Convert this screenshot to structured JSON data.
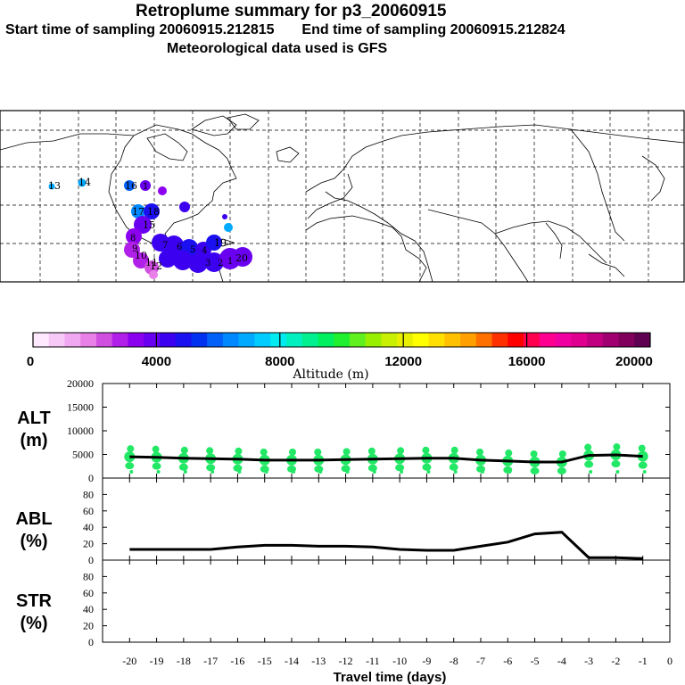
{
  "header": {
    "title": "Retroplume summary for p3_20060915",
    "start_label": "Start time of sampling",
    "start_value": "20060915.212815",
    "end_label": "End time of sampling",
    "end_value": "20060915.212824",
    "met": "Meteorological data used is GFS"
  },
  "colorbar": {
    "label": "Altitude (m)",
    "ticks": [
      "0",
      "4000",
      "8000",
      "12000",
      "16000",
      "20000"
    ],
    "colors": [
      "#ffe9ff",
      "#f6c9f6",
      "#f0a8f0",
      "#e880e8",
      "#d050e0",
      "#b020e8",
      "#8c00f0",
      "#6a00f0",
      "#3c00f0",
      "#1a10f0",
      "#0030f0",
      "#0060f8",
      "#0088ff",
      "#00aaff",
      "#00ccff",
      "#00eaf0",
      "#00f0c0",
      "#00f090",
      "#00f060",
      "#20f030",
      "#60f020",
      "#98f000",
      "#c8f000",
      "#e8f000",
      "#ffff00",
      "#ffe000",
      "#ffc000",
      "#ffa000",
      "#ff7000",
      "#ff3000",
      "#ff0000",
      "#ff0050",
      "#ff0090",
      "#f000a0",
      "#e00090",
      "#c00080",
      "#a00070",
      "#80005c",
      "#600050"
    ]
  },
  "map": {
    "labels": [
      "13",
      "14",
      "16",
      "1",
      "17",
      "18",
      "15",
      "12",
      "11",
      "10",
      "9",
      "8",
      "7",
      "6",
      "5",
      "4",
      "3",
      "2",
      "1",
      "20",
      "19"
    ]
  },
  "chart_data": [
    {
      "type": "line",
      "panel": "ALT",
      "ylabel": "ALT\n(m)",
      "ylabel_top": "ALT",
      "ylabel_unit": "(m)",
      "ylim": [
        0,
        20000
      ],
      "yticks": [
        "0",
        "5000",
        "10000",
        "15000",
        "20000"
      ],
      "x": [
        -20,
        -19,
        -18,
        -17,
        -16,
        -15,
        -14,
        -13,
        -12,
        -11,
        -10,
        -9,
        -8,
        -7,
        -6,
        -5,
        -4,
        -3,
        -2,
        -1
      ],
      "values": [
        4500,
        4400,
        4200,
        4100,
        4000,
        3800,
        3800,
        3800,
        3900,
        4000,
        4100,
        4200,
        4200,
        3800,
        3600,
        3400,
        3400,
        4800,
        4900,
        4600
      ]
    },
    {
      "type": "line",
      "panel": "ABL",
      "ylabel_top": "ABL",
      "ylabel_unit": "(%)",
      "ylim": [
        0,
        100
      ],
      "yticks": [
        "0",
        "20",
        "40",
        "60",
        "80"
      ],
      "x": [
        -20,
        -19,
        -18,
        -17,
        -16,
        -15,
        -14,
        -13,
        -12,
        -11,
        -10,
        -9,
        -8,
        -7,
        -6,
        -5,
        -4,
        -3,
        -2,
        -1
      ],
      "values": [
        13,
        13,
        13,
        13,
        16,
        18,
        18,
        17,
        17,
        16,
        13,
        12,
        12,
        17,
        22,
        32,
        34,
        3,
        3,
        2
      ]
    },
    {
      "type": "line",
      "panel": "STR",
      "ylabel_top": "STR",
      "ylabel_unit": "(%)",
      "ylim": [
        0,
        100
      ],
      "yticks": [
        "0",
        "20",
        "40",
        "60",
        "80"
      ],
      "x": [
        -20,
        -19,
        -18,
        -17,
        -16,
        -15,
        -14,
        -13,
        -12,
        -11,
        -10,
        -9,
        -8,
        -7,
        -6,
        -5,
        -4,
        -3,
        -2,
        -1
      ],
      "values": [
        0,
        0,
        0,
        0,
        0,
        0,
        0,
        0,
        0,
        0,
        0,
        0,
        0,
        0,
        0,
        0,
        0,
        0,
        0,
        0
      ]
    }
  ],
  "xaxis": {
    "label": "Travel time (days)",
    "ticks": [
      "-20",
      "-19",
      "-18",
      "-17",
      "-16",
      "-15",
      "-14",
      "-13",
      "-12",
      "-11",
      "-10",
      "-9",
      "-8",
      "-7",
      "-6",
      "-5",
      "-4",
      "-3",
      "-2",
      "-1",
      "0"
    ]
  }
}
